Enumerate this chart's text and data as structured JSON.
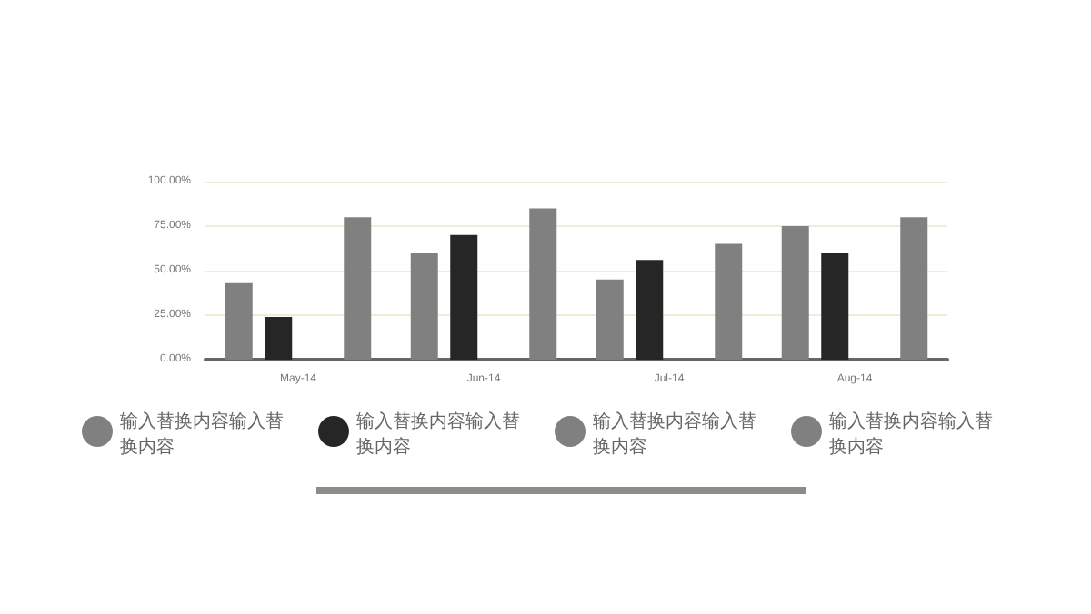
{
  "chart_data": {
    "type": "bar",
    "categories": [
      "May-14",
      "Jun-14",
      "Jul-14",
      "Aug-14"
    ],
    "series": [
      {
        "name": "输入替换内容输入替换内容",
        "color": "#808080",
        "values": [
          43,
          60,
          45,
          75
        ]
      },
      {
        "name": "输入替换内容输入替换内容",
        "color": "#262626",
        "values": [
          24,
          70,
          56,
          60
        ]
      },
      {
        "name": "输入替换内容输入替换内容",
        "color": "#808080",
        "values": [
          null,
          null,
          null,
          null
        ]
      },
      {
        "name": "输入替换内容输入替换内容",
        "color": "#808080",
        "values": [
          80,
          85,
          65,
          80
        ]
      }
    ],
    "ylim": [
      0,
      100
    ],
    "yticks": [
      {
        "value": 0,
        "label": "0.00%"
      },
      {
        "value": 25,
        "label": "25.00%"
      },
      {
        "value": 50,
        "label": "50.00%"
      },
      {
        "value": 75,
        "label": "75.00%"
      },
      {
        "value": 100,
        "label": "100.00%"
      }
    ],
    "grid": "y",
    "legend": "bottom"
  }
}
